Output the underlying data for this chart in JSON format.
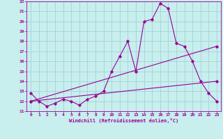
{
  "xlabel": "Windchill (Refroidissement éolien,°C)",
  "bg_color": "#c8eeed",
  "grid_color": "#a0d4d4",
  "line_color": "#990099",
  "xlim": [
    -0.5,
    23.5
  ],
  "ylim": [
    11,
    22
  ],
  "xticks": [
    0,
    1,
    2,
    3,
    4,
    5,
    6,
    7,
    8,
    9,
    10,
    11,
    12,
    13,
    14,
    15,
    16,
    17,
    18,
    19,
    20,
    21,
    22,
    23
  ],
  "yticks": [
    11,
    12,
    13,
    14,
    15,
    16,
    17,
    18,
    19,
    20,
    21,
    22
  ],
  "main_x": [
    0,
    1,
    2,
    3,
    4,
    5,
    6,
    7,
    8,
    9,
    10,
    11,
    12,
    13,
    14,
    15,
    16,
    17,
    18,
    19,
    20,
    21,
    22,
    23
  ],
  "main_y": [
    12.8,
    12.0,
    11.5,
    11.8,
    12.2,
    12.0,
    11.6,
    12.2,
    12.5,
    13.0,
    15.0,
    16.5,
    18.0,
    15.0,
    20.0,
    20.2,
    21.8,
    21.3,
    17.8,
    17.5,
    16.0,
    14.0,
    12.8,
    12.0
  ],
  "line2_x": [
    0,
    23
  ],
  "line2_y": [
    12.0,
    17.5
  ],
  "line3_x": [
    0,
    23
  ],
  "line3_y": [
    12.0,
    14.0
  ],
  "tick_fontsize": 4.5,
  "xlabel_fontsize": 5.0
}
